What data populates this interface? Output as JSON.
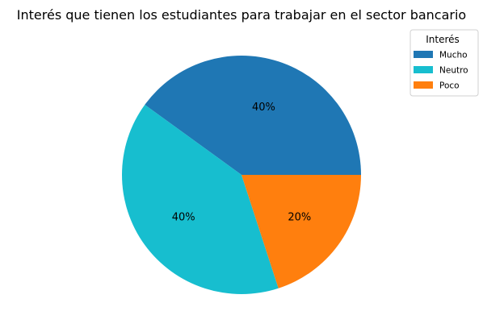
{
  "chart_data": {
    "type": "pie",
    "title": "Interés que tienen los estudiantes para trabajar en el sector bancario",
    "categories": [
      "Mucho",
      "Neutro",
      "Poco"
    ],
    "values": [
      40,
      40,
      20
    ],
    "value_labels": [
      "40%",
      "40%",
      "20%"
    ],
    "colors": [
      "#1f77b4",
      "#17becf",
      "#ff7f0e"
    ],
    "start_angle_deg": 0,
    "direction": "counterclockwise",
    "legend": {
      "title": "Interés",
      "placement": "upper-right-outside"
    }
  }
}
